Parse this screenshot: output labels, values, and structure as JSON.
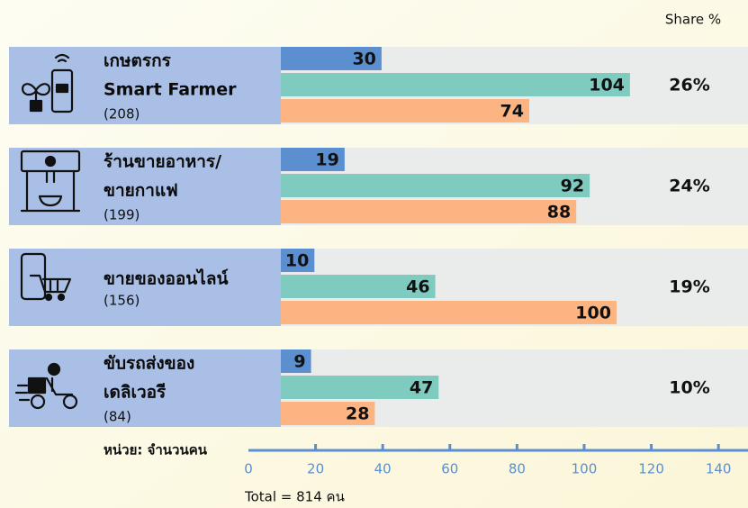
{
  "chart_data": {
    "type": "bar",
    "orientation": "horizontal",
    "share_header": "Share %",
    "categories": [
      [
        "เกษตรกร",
        "Smart Farmer"
      ],
      [
        "ร้านขายอาหาร/",
        "ขายกาแฟ"
      ],
      [
        "ขายของออนไลน์"
      ],
      [
        "ขับรถส่งของ",
        "เดลิเวอรี"
      ]
    ],
    "group_totals": [
      "(208)",
      "(199)",
      "(156)",
      "(84)"
    ],
    "shares": [
      "26%",
      "24%",
      "19%",
      "10%"
    ],
    "series": [
      {
        "color": "#5b8fd0",
        "values": [
          30,
          19,
          10,
          9
        ]
      },
      {
        "color": "#7fcbbf",
        "values": [
          104,
          92,
          46,
          47
        ]
      },
      {
        "color": "#fbb482",
        "values": [
          74,
          88,
          100,
          28
        ]
      }
    ],
    "xlabel": "หน่วย: จำนวนคน",
    "footer": "Total = 814 คน",
    "xlim": [
      0,
      148
    ],
    "xticks": [
      0,
      20,
      40,
      60,
      80,
      100,
      120,
      140
    ]
  }
}
